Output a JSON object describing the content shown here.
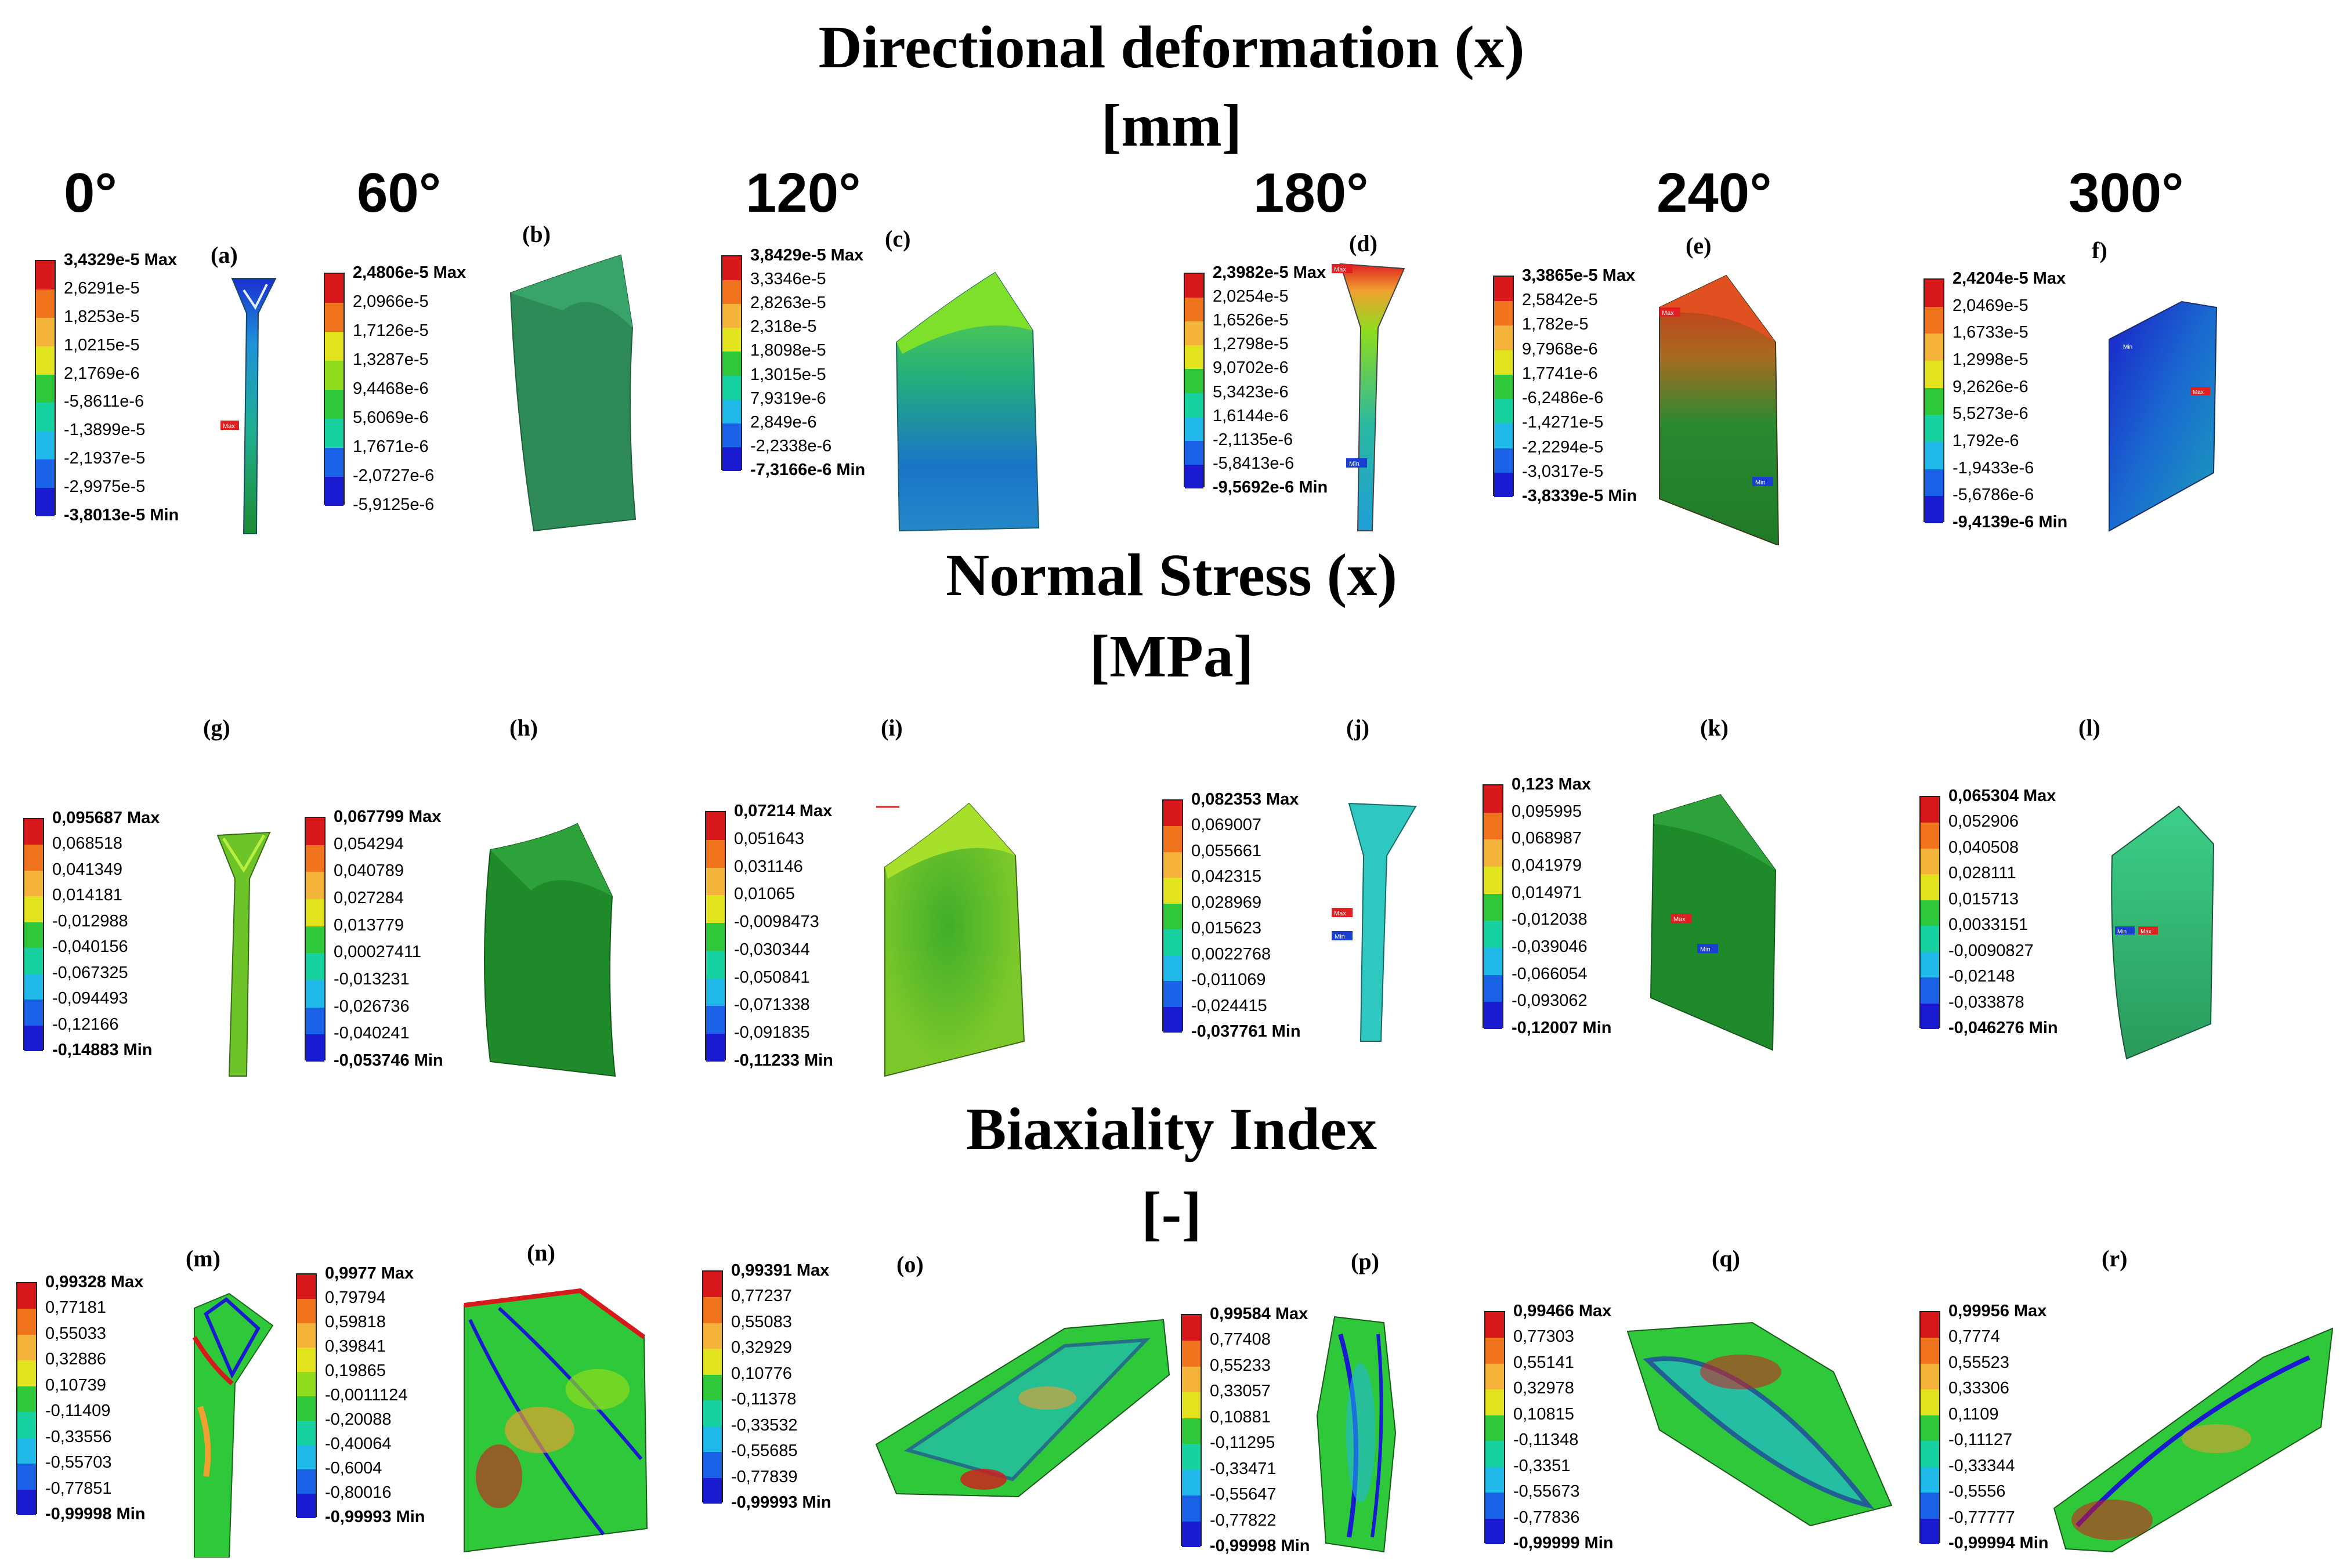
{
  "titles": {
    "deformation": "Directional deformation (x)",
    "deformation_unit": "[mm]",
    "stress": "Normal Stress (x)",
    "stress_unit": "[MPa]",
    "biaxiality": "Biaxiality Index",
    "biaxiality_unit": "[-]"
  },
  "angles": [
    "0°",
    "60°",
    "120°",
    "180°",
    "240°",
    "300°"
  ],
  "panel_labels": [
    "(a)",
    "(b)",
    "(c)",
    "(d)",
    "(e)",
    "f)",
    "(g)",
    "(h)",
    "(i)",
    "(j)",
    "(k)",
    "(l)",
    "(m)",
    "(n)",
    "(o)",
    "(p)",
    "(q)",
    "(r)"
  ],
  "legends": [
    {
      "max": "3,4329e-5 Max",
      "ticks": [
        "2,6291e-5",
        "1,8253e-5",
        "1,0215e-5",
        "2,1769e-6",
        "-5,8611e-6",
        "-1,3899e-5",
        "-2,1937e-5",
        "-2,9975e-5"
      ],
      "min": "-3,8013e-5 Min"
    },
    {
      "max": "2,4806e-5 Max",
      "ticks": [
        "2,0966e-5",
        "1,7126e-5",
        "1,3287e-5",
        "9,4468e-6",
        "5,6069e-6",
        "1,7671e-6",
        "-2,0727e-6",
        "-5,9125e-6"
      ],
      "min": ""
    },
    {
      "max": "3,8429e-5 Max",
      "ticks": [
        "3,3346e-5",
        "2,8263e-5",
        "2,318e-5",
        "1,8098e-5",
        "1,3015e-5",
        "7,9319e-6",
        "2,849e-6",
        "-2,2338e-6"
      ],
      "min": "-7,3166e-6 Min"
    },
    {
      "max": "2,3982e-5 Max",
      "ticks": [
        "2,0254e-5",
        "1,6526e-5",
        "1,2798e-5",
        "9,0702e-6",
        "5,3423e-6",
        "1,6144e-6",
        "-2,1135e-6",
        "-5,8413e-6"
      ],
      "min": "-9,5692e-6 Min"
    },
    {
      "max": "3,3865e-5 Max",
      "ticks": [
        "2,5842e-5",
        "1,782e-5",
        "9,7968e-6",
        "1,7741e-6",
        "-6,2486e-6",
        "-1,4271e-5",
        "-2,2294e-5",
        "-3,0317e-5"
      ],
      "min": "-3,8339e-5 Min"
    },
    {
      "max": "2,4204e-5 Max",
      "ticks": [
        "2,0469e-5",
        "1,6733e-5",
        "1,2998e-5",
        "9,2626e-6",
        "5,5273e-6",
        "1,792e-6",
        "-1,9433e-6",
        "-5,6786e-6"
      ],
      "min": "-9,4139e-6 Min"
    },
    {
      "max": "0,095687 Max",
      "ticks": [
        "0,068518",
        "0,041349",
        "0,014181",
        "-0,012988",
        "-0,040156",
        "-0,067325",
        "-0,094493",
        "-0,12166"
      ],
      "min": "-0,14883 Min"
    },
    {
      "max": "0,067799 Max",
      "ticks": [
        "0,054294",
        "0,040789",
        "0,027284",
        "0,013779",
        "0,00027411",
        "-0,013231",
        "-0,026736",
        "-0,040241"
      ],
      "min": "-0,053746 Min"
    },
    {
      "max": "0,07214 Max",
      "ticks": [
        "0,051643",
        "0,031146",
        "0,01065",
        "-0,0098473",
        "-0,030344",
        "-0,050841",
        "-0,071338",
        "-0,091835"
      ],
      "min": "-0,11233 Min"
    },
    {
      "max": "0,082353 Max",
      "ticks": [
        "0,069007",
        "0,055661",
        "0,042315",
        "0,028969",
        "0,015623",
        "0,0022768",
        "-0,011069",
        "-0,024415"
      ],
      "min": "-0,037761 Min"
    },
    {
      "max": "0,123 Max",
      "ticks": [
        "0,095995",
        "0,068987",
        "0,041979",
        "0,014971",
        "-0,012038",
        "-0,039046",
        "-0,066054",
        "-0,093062"
      ],
      "min": "-0,12007 Min"
    },
    {
      "max": "0,065304 Max",
      "ticks": [
        "0,052906",
        "0,040508",
        "0,028111",
        "0,015713",
        "0,0033151",
        "-0,0090827",
        "-0,02148",
        "-0,033878"
      ],
      "min": "-0,046276 Min"
    },
    {
      "max": "0,99328 Max",
      "ticks": [
        "0,77181",
        "0,55033",
        "0,32886",
        "0,10739",
        "-0,11409",
        "-0,33556",
        "-0,55703",
        "-0,77851"
      ],
      "min": "-0,99998 Min"
    },
    {
      "max": "0,9977 Max",
      "ticks": [
        "0,79794",
        "0,59818",
        "0,39841",
        "0,19865",
        "-0,0011124",
        "-0,20088",
        "-0,40064",
        "-0,6004",
        "-0,80016"
      ],
      "min": "-0,99993 Min"
    },
    {
      "max": "0,99391 Max",
      "ticks": [
        "0,77237",
        "0,55083",
        "0,32929",
        "0,10776",
        "-0,11378",
        "-0,33532",
        "-0,55685",
        "-0,77839"
      ],
      "min": "-0,99993 Min"
    },
    {
      "max": "0,99584 Max",
      "ticks": [
        "0,77408",
        "0,55233",
        "0,33057",
        "0,10881",
        "-0,11295",
        "-0,33471",
        "-0,55647",
        "-0,77822"
      ],
      "min": "-0,99998 Min"
    },
    {
      "max": "0,99466 Max",
      "ticks": [
        "0,77303",
        "0,55141",
        "0,32978",
        "0,10815",
        "-0,11348",
        "-0,3351",
        "-0,55673",
        "-0,77836"
      ],
      "min": "-0,99999 Min"
    },
    {
      "max": "0,99956 Max",
      "ticks": [
        "0,7774",
        "0,55523",
        "0,33306",
        "0,1109",
        "-0,11127",
        "-0,33344",
        "-0,5556",
        "-0,77777"
      ],
      "min": "-0,99994 Min"
    }
  ],
  "markers": {
    "max": "Max",
    "min": "Min"
  },
  "colors": {
    "scale": [
      "#d7191c",
      "#f0731d",
      "#f4b33a",
      "#e2e21f",
      "#8fdc1e",
      "#2fc83b",
      "#17d2a0",
      "#1fb8e8",
      "#1a62e6",
      "#1a1ad0"
    ],
    "deformation_green": "#2e8b57",
    "stress_green": "#1f8a2a",
    "marker_max": "#e02020",
    "marker_min": "#1a3fd0"
  }
}
